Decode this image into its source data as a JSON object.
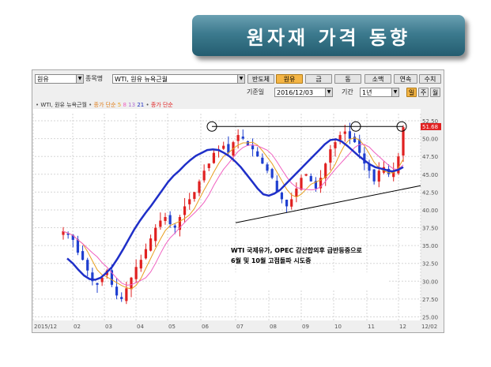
{
  "slide": {
    "title": "원자재 가격 동향"
  },
  "toolbar": {
    "item_select": "원유",
    "item_code_label": "종목명",
    "item_name": "WTI, 원유 뉴욕근월",
    "buttons": [
      {
        "label": "반도체",
        "active": false
      },
      {
        "label": "원유",
        "active": true
      },
      {
        "label": "금",
        "active": false
      },
      {
        "label": "동",
        "active": false
      },
      {
        "label": "소맥",
        "active": false
      },
      {
        "label": "연속",
        "active": false
      },
      {
        "label": "수치",
        "active": false
      }
    ],
    "base_date_label": "기준일",
    "base_date": "2016/12/03",
    "period_label": "기간",
    "period_value": "1년",
    "freq_buttons": [
      {
        "label": "일",
        "active": true
      },
      {
        "label": "주",
        "active": false
      },
      {
        "label": "월",
        "active": false
      }
    ]
  },
  "legend": {
    "series_name": "WTI, 원유 뉴욕근월",
    "ma_label": "종가 단순",
    "ma_periods": [
      "5",
      "8",
      "13",
      "21"
    ],
    "ma2_label": "종가 단순",
    "colors": {
      "ma5": "#e8a020",
      "ma8": "#f060c0",
      "ma13": "#b070d0",
      "ma21": "#2030c0",
      "up": "#e02020",
      "down": "#2040d0"
    }
  },
  "chart_data": {
    "type": "candlestick",
    "x_tick_labels": [
      "2015/12",
      "02",
      "03",
      "04",
      "05",
      "06",
      "07",
      "08",
      "09",
      "10",
      "11",
      "12",
      "12/02"
    ],
    "y_tick_labels": [
      "52.50",
      "50.00",
      "47.50",
      "45.00",
      "42.50",
      "40.00",
      "37.50",
      "35.00",
      "32.50",
      "30.00",
      "27.50",
      "25.00"
    ],
    "ylim": [
      24.5,
      53.5
    ],
    "last_price": "51.68",
    "close_series": [
      37.0,
      36.5,
      35.8,
      34.0,
      33.0,
      31.5,
      30.0,
      29.5,
      30.5,
      31.5,
      29.5,
      28.0,
      27.5,
      29.0,
      30.5,
      32.0,
      33.0,
      34.5,
      36.0,
      37.5,
      38.5,
      39.0,
      38.0,
      37.5,
      39.0,
      40.5,
      41.5,
      42.5,
      44.0,
      45.5,
      46.5,
      48.0,
      48.5,
      49.0,
      48.0,
      49.5,
      50.5,
      50.0,
      49.0,
      48.5,
      47.5,
      46.5,
      45.5,
      44.5,
      42.5,
      41.5,
      40.5,
      41.5,
      43.0,
      44.5,
      45.0,
      44.0,
      43.0,
      44.5,
      46.5,
      48.5,
      49.5,
      50.5,
      51.0,
      50.0,
      49.5,
      48.0,
      46.5,
      45.5,
      44.0,
      45.5,
      46.0,
      45.0,
      45.5,
      47.5,
      51.6
    ],
    "ma21_series": [
      33.2,
      32.5,
      31.6,
      30.8,
      30.3,
      30.2,
      30.5,
      31.2,
      32.0,
      33.2,
      34.5,
      35.9,
      37.3,
      38.5,
      39.6,
      40.6,
      41.7,
      42.8,
      43.9,
      44.8,
      45.5,
      46.3,
      47.0,
      47.6,
      48.0,
      48.4,
      48.5,
      48.4,
      48.0,
      47.5,
      46.8,
      46.0,
      45.0,
      44.0,
      43.0,
      42.2,
      42.0,
      42.3,
      42.8,
      43.6,
      44.4,
      45.2,
      46.0,
      46.8,
      47.6,
      48.4,
      49.2,
      49.8,
      49.9,
      49.6,
      49.0,
      48.3,
      47.6,
      47.0,
      46.4,
      46.0,
      45.8,
      45.6,
      45.4,
      45.6,
      46.0
    ],
    "resistance_value": 51.7,
    "support_line": {
      "from": 38.2,
      "to": 43.4
    },
    "highlight_circles": [
      "06",
      "10",
      "12"
    ]
  },
  "annotation": {
    "line1": "WTI 국제유가, OPEC 감산합의후 급반등중으로",
    "line2": "6월 및 10월 고점돌파 시도중"
  }
}
